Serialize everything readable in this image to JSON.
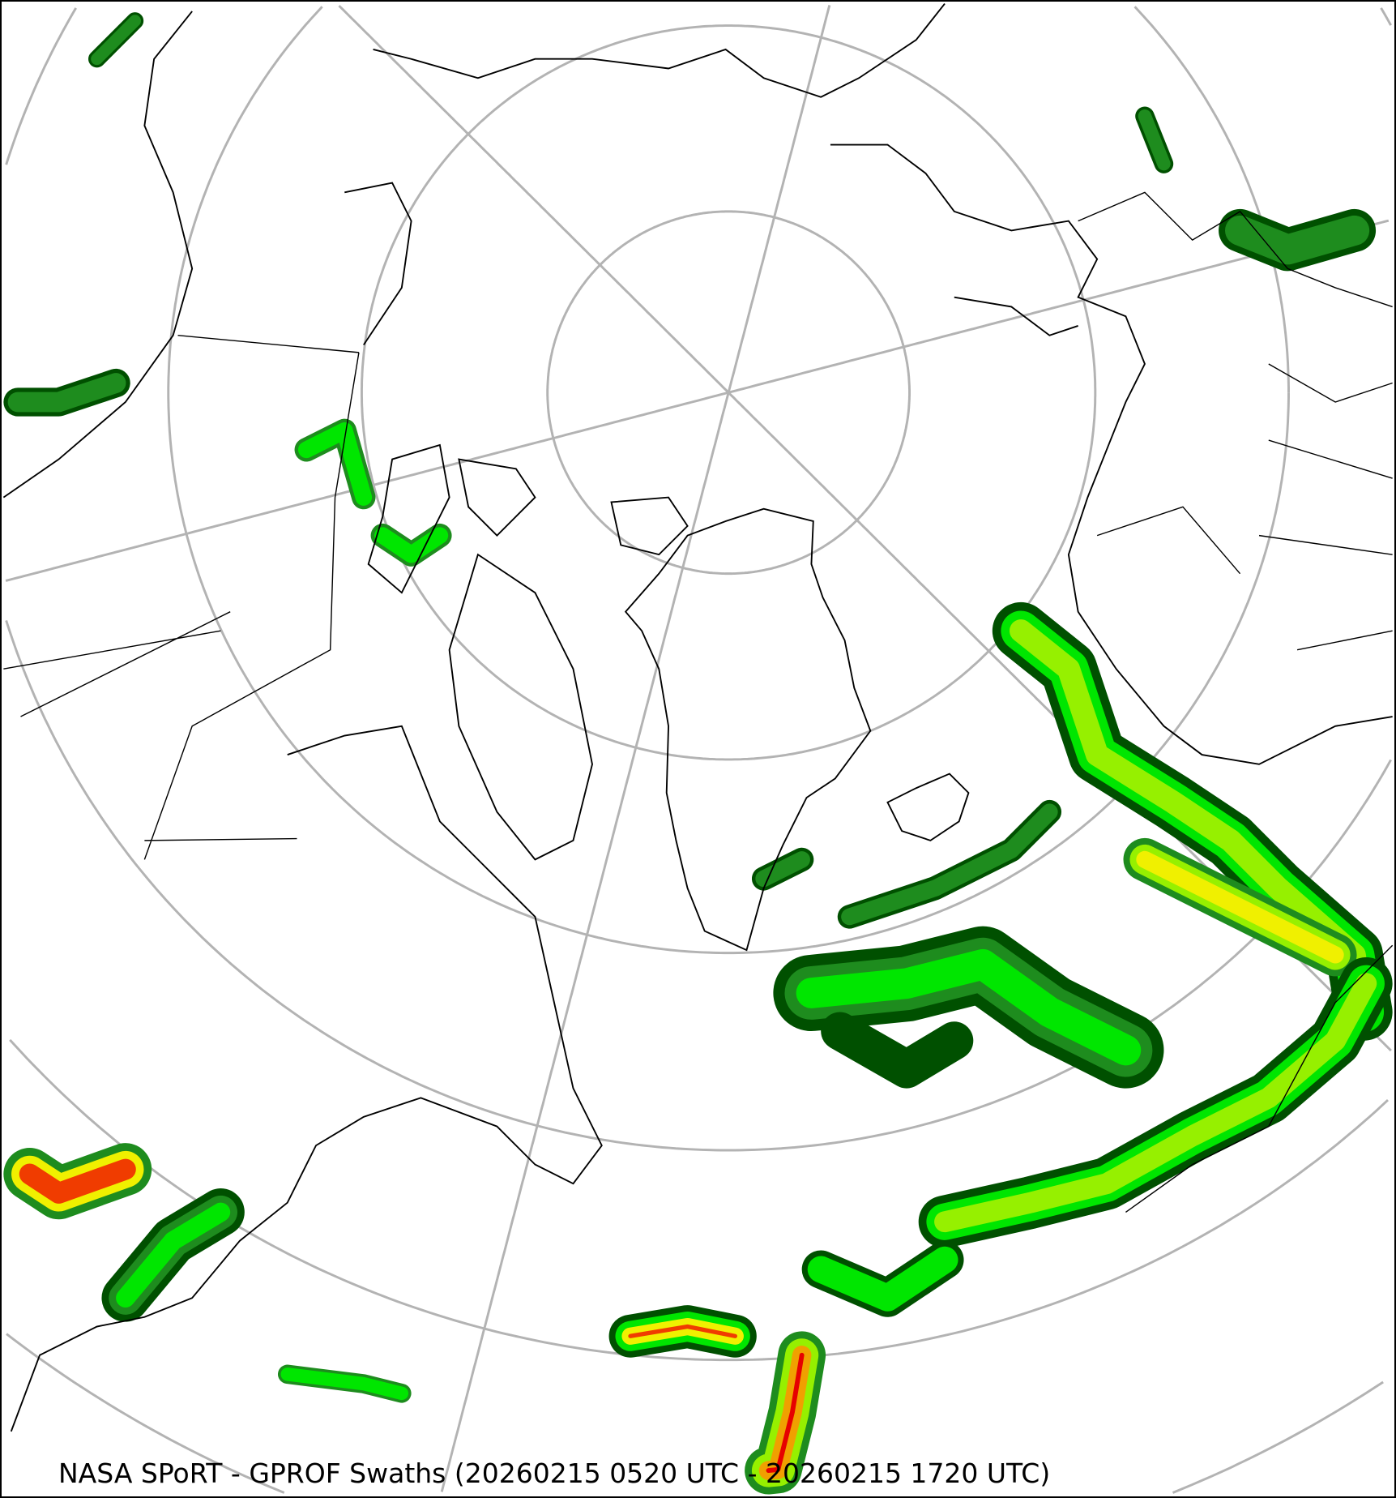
{
  "map": {
    "caption": "NASA SPoRT - GPROF Swaths (20260215 0520 UTC - 20260215 1720 UTC)",
    "projection": "north-polar-stereographic",
    "graticule_color": "#b3b3b3",
    "coastline_color": "#000000",
    "precip_colors": [
      "#005000",
      "#1e8c1e",
      "#00e600",
      "#96f000",
      "#f0f000",
      "#f0a000",
      "#f03c00",
      "#e60000"
    ]
  }
}
